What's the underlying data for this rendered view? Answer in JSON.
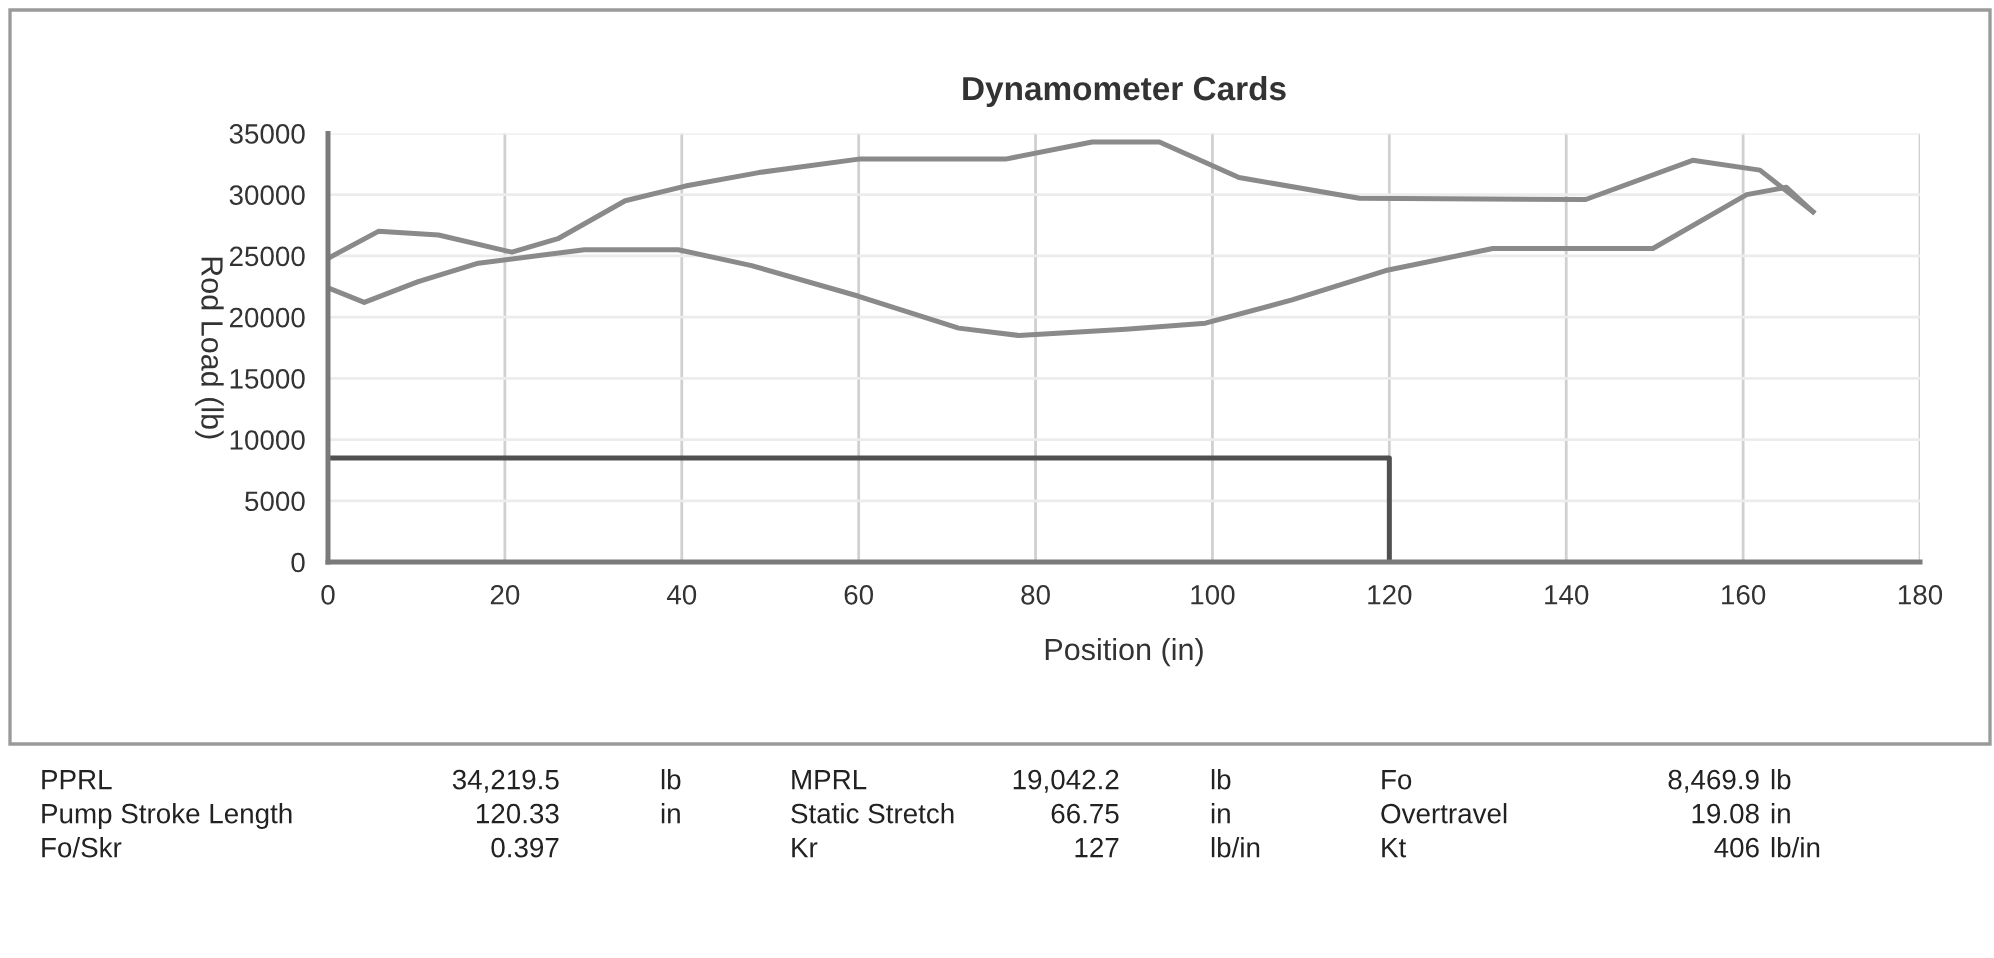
{
  "chart_data": {
    "type": "line",
    "title": "Dynamometer Cards",
    "xlabel": "Position (in)",
    "ylabel": "Rod Load (lb)",
    "xlim": [
      0,
      180
    ],
    "xticks": [
      0,
      20,
      40,
      60,
      80,
      100,
      120,
      140,
      160,
      180
    ],
    "ylim": [
      0,
      35000
    ],
    "yticks": [
      0,
      5000,
      10000,
      15000,
      20000,
      25000,
      30000,
      35000
    ],
    "grid": true,
    "marker": "none",
    "line_style": "solid",
    "series": [
      {
        "color": "#8a8a8a",
        "x": [
          0,
          5.7,
          12.5,
          20.8,
          26,
          33.6,
          40.4,
          48.7,
          60,
          76.6,
          86.4,
          94,
          103,
          116.6,
          142.2,
          154.3,
          161.9,
          167.9
        ],
        "values": [
          24800,
          27000,
          26700,
          25300,
          26400,
          29500,
          30700,
          31800,
          32900,
          32900,
          34300,
          34300,
          31400,
          29700,
          29600,
          32800,
          32000,
          28600
        ]
      },
      {
        "color": "#8a8a8a",
        "x": [
          0,
          4.1,
          10.2,
          17,
          29,
          39.6,
          47.9,
          60,
          71.3,
          78.1,
          90.2,
          99.2,
          109,
          119.6,
          131.7,
          149.8,
          160.4,
          164.9,
          167.9
        ],
        "values": [
          22400,
          21200,
          22900,
          24400,
          25500,
          25500,
          24200,
          21700,
          19100,
          18500,
          19000,
          19500,
          21400,
          23800,
          25600,
          25600,
          30000,
          30600,
          28600
        ]
      },
      {
        "color": "#505050",
        "x": [
          0,
          120,
          120
        ],
        "values": [
          8500,
          8500,
          0
        ]
      }
    ],
    "annotations": [
      "PPRL",
      "34,219.5",
      "lb",
      "MPRL",
      "19,042.2",
      "lb",
      "Fo",
      "8,469.9",
      "lb",
      "Pump Stroke Length",
      "120.33",
      "in",
      "Static Stretch",
      "66.75",
      "in",
      "Overtravel",
      "19.08",
      "in",
      "Fo/Skr",
      "0.397",
      null,
      "Kr",
      "127",
      "lb/in",
      "Kt",
      "406",
      "lb/in"
    ]
  }
}
